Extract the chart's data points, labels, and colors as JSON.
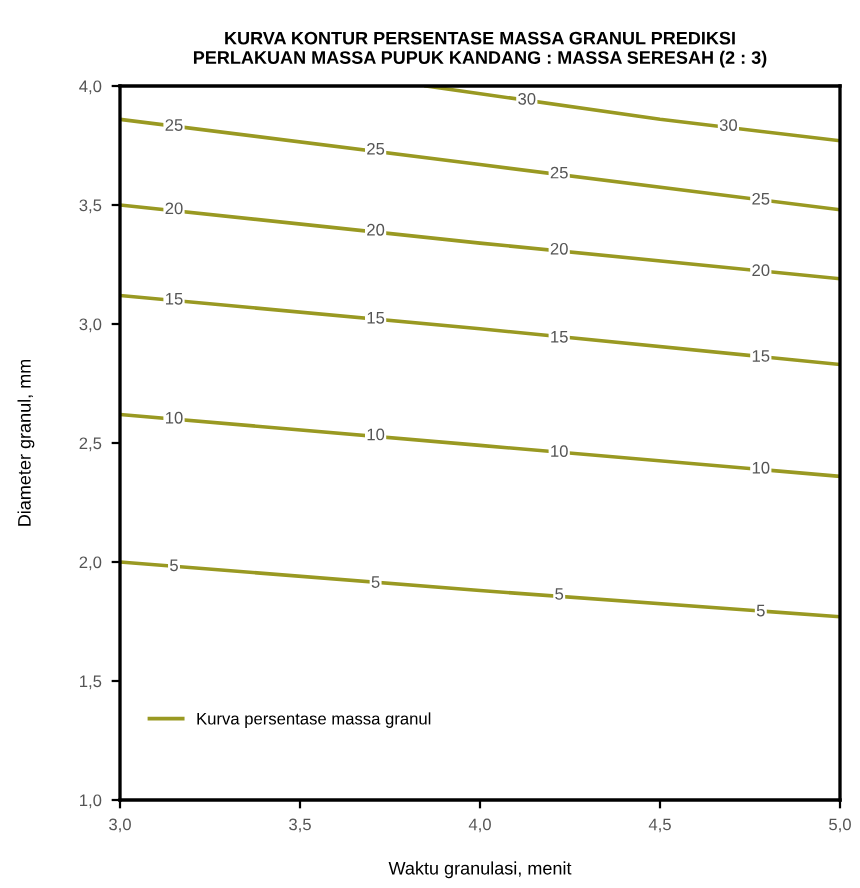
{
  "chart_data": {
    "type": "line",
    "title": "KURVA KONTUR PERSENTASE MASSA GRANUL PREDIKSI\nPERLAKUAN MASSA PUPUK KANDANG : MASSA SERESAH (2 : 3)",
    "xlabel": "Waktu granulasi, menit",
    "ylabel": "Diameter granul, mm",
    "legend": "bottom left",
    "series": [
      {
        "name": "Kurva persentase massa granul",
        "color": "#999922",
        "x": [
          3.0,
          4.0,
          5.0
        ],
        "values": [
          2.0,
          1.88,
          1.77
        ]
      },
      {
        "color": "#999922",
        "x": [
          3.0,
          4.0,
          5.0
        ],
        "values": [
          2.62,
          2.49,
          2.36
        ]
      },
      {
        "color": "#999922",
        "x": [
          3.0,
          4.0,
          5.0
        ],
        "values": [
          3.12,
          2.98,
          2.83
        ]
      },
      {
        "color": "#999922",
        "x": [
          3.0,
          4.0,
          5.0
        ],
        "values": [
          3.5,
          3.34,
          3.19
        ]
      },
      {
        "color": "#999922",
        "x": [
          3.0,
          4.0,
          5.0
        ],
        "values": [
          3.86,
          3.67,
          3.48
        ]
      },
      {
        "color": "#999922",
        "x": [
          3.85,
          4.5,
          5.0
        ],
        "values": [
          4.0,
          3.86,
          3.77
        ]
      }
    ],
    "annotations": [
      {
        "text": "5",
        "x": 3.15,
        "y": 1.98
      },
      {
        "text": "5",
        "x": 3.71,
        "y": 1.91
      },
      {
        "text": "5",
        "x": 4.22,
        "y": 1.86
      },
      {
        "text": "5",
        "x": 4.78,
        "y": 1.79
      },
      {
        "text": "10",
        "x": 3.15,
        "y": 2.6
      },
      {
        "text": "10",
        "x": 3.71,
        "y": 2.53
      },
      {
        "text": "10",
        "x": 4.22,
        "y": 2.46
      },
      {
        "text": "10",
        "x": 4.78,
        "y": 2.39
      },
      {
        "text": "15",
        "x": 3.15,
        "y": 3.1
      },
      {
        "text": "15",
        "x": 3.71,
        "y": 3.02
      },
      {
        "text": "15",
        "x": 4.22,
        "y": 2.94
      },
      {
        "text": "15",
        "x": 4.78,
        "y": 2.86
      },
      {
        "text": "20",
        "x": 3.15,
        "y": 3.48
      },
      {
        "text": "20",
        "x": 3.71,
        "y": 3.39
      },
      {
        "text": "20",
        "x": 4.22,
        "y": 3.31
      },
      {
        "text": "20",
        "x": 4.78,
        "y": 3.22
      },
      {
        "text": "25",
        "x": 3.15,
        "y": 3.83
      },
      {
        "text": "25",
        "x": 3.71,
        "y": 3.73
      },
      {
        "text": "25",
        "x": 4.22,
        "y": 3.63
      },
      {
        "text": "25",
        "x": 4.78,
        "y": 3.52
      },
      {
        "text": "30",
        "x": 4.13,
        "y": 3.94
      },
      {
        "text": "30",
        "x": 4.69,
        "y": 3.83
      }
    ],
    "xlim": [
      3.0,
      5.0
    ],
    "ylim": [
      1.0,
      4.0
    ],
    "xticks": [
      {
        "value": 3.0,
        "label": "3,0"
      },
      {
        "value": 3.5,
        "label": "3,5"
      },
      {
        "value": 4.0,
        "label": "4,0"
      },
      {
        "value": 4.5,
        "label": "4,5"
      },
      {
        "value": 5.0,
        "label": "5,0"
      }
    ],
    "yticks": [
      {
        "value": 1.0,
        "label": "1,0"
      },
      {
        "value": 1.5,
        "label": "1,5"
      },
      {
        "value": 2.0,
        "label": "2,0"
      },
      {
        "value": 2.5,
        "label": "2,5"
      },
      {
        "value": 3.0,
        "label": "3,0"
      },
      {
        "value": 3.5,
        "label": "3,5"
      },
      {
        "value": 4.0,
        "label": "4,0"
      }
    ],
    "grid": false,
    "line_style": "solid",
    "marker": "none"
  }
}
